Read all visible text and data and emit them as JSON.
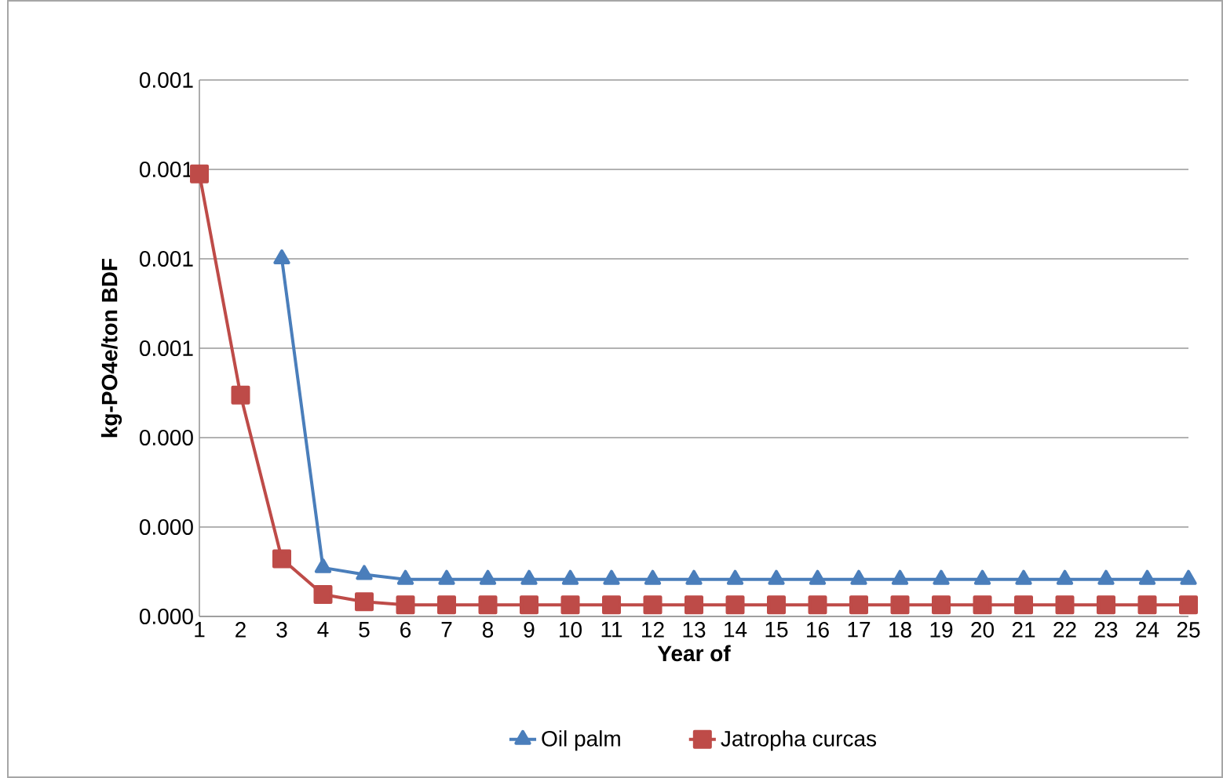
{
  "chart_data": {
    "type": "line",
    "xlabel": "Year  of",
    "ylabel": "kg-PO4e/ton BDF",
    "categories": [
      "1",
      "2",
      "3",
      "4",
      "5",
      "6",
      "7",
      "8",
      "9",
      "10",
      "11",
      "12",
      "13",
      "14",
      "15",
      "16",
      "17",
      "18",
      "19",
      "20",
      "21",
      "22",
      "23",
      "24",
      "25"
    ],
    "series": [
      {
        "name": "Oil palm",
        "color": "#4a7ebb",
        "marker": "triangle",
        "values": [
          null,
          null,
          0.0008,
          0.000109,
          9.4e-05,
          8.3e-05,
          8.3e-05,
          8.3e-05,
          8.3e-05,
          8.3e-05,
          8.3e-05,
          8.3e-05,
          8.3e-05,
          8.3e-05,
          8.3e-05,
          8.3e-05,
          8.3e-05,
          8.3e-05,
          8.3e-05,
          8.3e-05,
          8.3e-05,
          8.3e-05,
          8.3e-05,
          8.3e-05,
          8.3e-05
        ]
      },
      {
        "name": "Jatropha curcas",
        "color": "#be4b48",
        "marker": "square",
        "values": [
          0.00099,
          0.000495,
          0.000129,
          4.9e-05,
          3.3e-05,
          2.6e-05,
          2.6e-05,
          2.6e-05,
          2.6e-05,
          2.6e-05,
          2.6e-05,
          2.6e-05,
          2.6e-05,
          2.6e-05,
          2.6e-05,
          2.6e-05,
          2.6e-05,
          2.6e-05,
          2.6e-05,
          2.6e-05,
          2.6e-05,
          2.6e-05,
          2.6e-05,
          2.6e-05,
          2.6e-05
        ]
      }
    ],
    "ylim": [
      0,
      0.0012
    ],
    "yticks": [
      {
        "value": 0,
        "label": "0.000"
      },
      {
        "value": 0.0002,
        "label": "0.000"
      },
      {
        "value": 0.0004,
        "label": "0.000"
      },
      {
        "value": 0.0006,
        "label": "0.001"
      },
      {
        "value": 0.0008,
        "label": "0.001"
      },
      {
        "value": 0.001,
        "label": "0.001"
      },
      {
        "value": 0.0012,
        "label": "0.001"
      }
    ],
    "grid": "y",
    "legend": "bottom",
    "line_style": "solid"
  }
}
